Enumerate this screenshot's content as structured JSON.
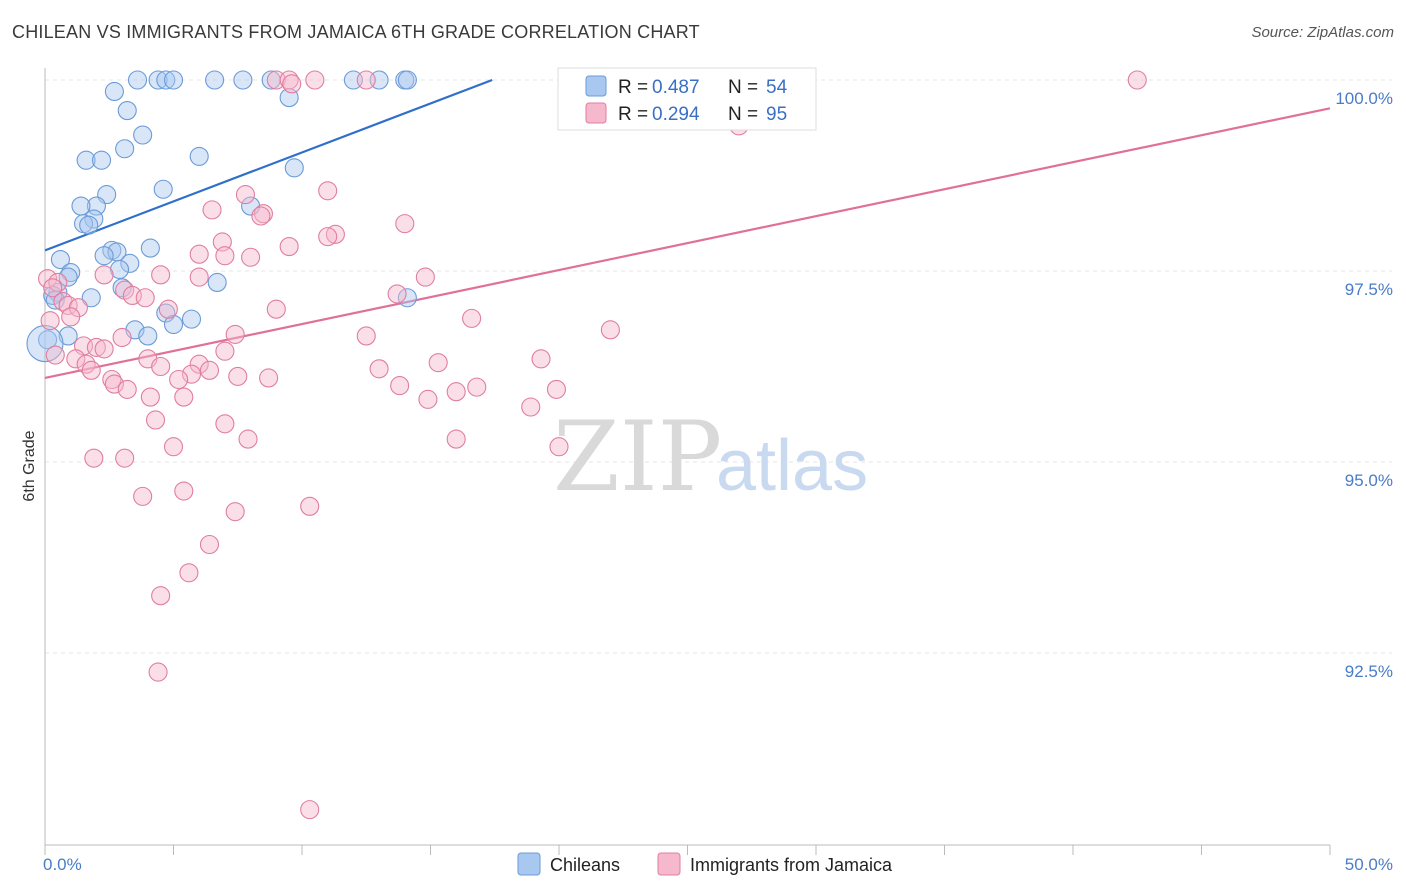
{
  "title": "CHILEAN VS IMMIGRANTS FROM JAMAICA 6TH GRADE CORRELATION CHART",
  "source": "Source: ZipAtlas.com",
  "watermark": {
    "part1": "ZIP",
    "part2": "atlas"
  },
  "legend": {
    "rows": [
      {
        "r_label": "R = ",
        "r_value": "0.487",
        "n_label": "N = ",
        "n_value": "54",
        "color": "#a8c8ef",
        "stroke": "#6b9bd8"
      },
      {
        "r_label": "R = ",
        "r_value": "0.294",
        "n_label": "N = ",
        "n_value": "95",
        "color": "#f6b8cc",
        "stroke": "#e07ea0"
      }
    ]
  },
  "bottom_legend": [
    "Chileans",
    "Immigrants from Jamaica"
  ],
  "chart_data": {
    "type": "scatter",
    "title": "CHILEAN VS IMMIGRANTS FROM JAMAICA 6TH GRADE CORRELATION CHART",
    "xlabel": "",
    "ylabel": "6th Grade",
    "xlim": [
      0,
      50
    ],
    "ylim": [
      90.5,
      100.25
    ],
    "x_tick_labels": [
      "0.0%",
      "50.0%"
    ],
    "y_ticks": [
      92.5,
      95.0,
      97.5,
      100.0
    ],
    "y_tick_labels": [
      "92.5%",
      "95.0%",
      "97.5%",
      "100.0%"
    ],
    "grid": true,
    "legend_position": "top-center",
    "series": [
      {
        "name": "Chileans",
        "color": "#6b9bd8",
        "fill": "#a8c8ef",
        "trend": {
          "x": [
            0,
            17.4
          ],
          "y": [
            97.77,
            100.0
          ]
        },
        "points": [
          [
            3.6,
            100.0
          ],
          [
            4.4,
            100.0
          ],
          [
            4.7,
            100.0
          ],
          [
            5.0,
            100.0
          ],
          [
            6.6,
            100.0
          ],
          [
            7.7,
            100.0
          ],
          [
            8.8,
            100.0
          ],
          [
            12.0,
            100.0
          ],
          [
            13.0,
            100.0
          ],
          [
            14.0,
            100.0
          ],
          [
            14.1,
            100.0
          ],
          [
            25.6,
            100.0
          ],
          [
            2.7,
            99.85
          ],
          [
            9.5,
            99.77
          ],
          [
            3.2,
            99.6
          ],
          [
            3.8,
            99.28
          ],
          [
            3.1,
            99.1
          ],
          [
            6.0,
            99.0
          ],
          [
            1.6,
            98.95
          ],
          [
            2.2,
            98.95
          ],
          [
            9.7,
            98.85
          ],
          [
            4.6,
            98.57
          ],
          [
            2.4,
            98.5
          ],
          [
            2.0,
            98.35
          ],
          [
            1.4,
            98.35
          ],
          [
            8.0,
            98.35
          ],
          [
            1.9,
            98.18
          ],
          [
            1.5,
            98.12
          ],
          [
            1.7,
            98.1
          ],
          [
            4.1,
            97.8
          ],
          [
            2.6,
            97.77
          ],
          [
            2.8,
            97.75
          ],
          [
            2.3,
            97.7
          ],
          [
            0.6,
            97.65
          ],
          [
            3.3,
            97.6
          ],
          [
            2.9,
            97.52
          ],
          [
            1.0,
            97.48
          ],
          [
            0.9,
            97.42
          ],
          [
            6.7,
            97.35
          ],
          [
            3.0,
            97.28
          ],
          [
            0.5,
            97.22
          ],
          [
            0.3,
            97.18
          ],
          [
            1.8,
            97.15
          ],
          [
            14.1,
            97.15
          ],
          [
            0.4,
            97.12
          ],
          [
            4.7,
            96.95
          ],
          [
            5.7,
            96.87
          ],
          [
            5.0,
            96.8
          ],
          [
            3.5,
            96.73
          ],
          [
            4.0,
            96.65
          ],
          [
            0.9,
            96.65
          ],
          [
            0.1,
            96.6
          ],
          [
            0.0,
            96.55
          ]
        ]
      },
      {
        "name": "Immigrants from Jamaica",
        "color": "#e07ea0",
        "fill": "#f6b8cc",
        "trend": {
          "x": [
            0,
            50
          ],
          "y": [
            96.1,
            99.63
          ]
        },
        "points": [
          [
            9.0,
            100.0
          ],
          [
            9.5,
            100.0
          ],
          [
            10.5,
            100.0
          ],
          [
            12.5,
            100.0
          ],
          [
            20.5,
            100.0
          ],
          [
            25.8,
            100.0
          ],
          [
            42.5,
            100.0
          ],
          [
            9.6,
            99.95
          ],
          [
            27.0,
            99.4
          ],
          [
            11.0,
            98.55
          ],
          [
            7.8,
            98.5
          ],
          [
            6.5,
            98.3
          ],
          [
            8.5,
            98.25
          ],
          [
            8.4,
            98.22
          ],
          [
            14.0,
            98.12
          ],
          [
            11.3,
            97.98
          ],
          [
            11.0,
            97.95
          ],
          [
            6.9,
            97.88
          ],
          [
            9.5,
            97.82
          ],
          [
            6.0,
            97.72
          ],
          [
            7.0,
            97.7
          ],
          [
            8.0,
            97.68
          ],
          [
            4.5,
            97.45
          ],
          [
            2.3,
            97.45
          ],
          [
            6.0,
            97.42
          ],
          [
            14.8,
            97.42
          ],
          [
            0.1,
            97.4
          ],
          [
            0.5,
            97.35
          ],
          [
            0.3,
            97.28
          ],
          [
            3.1,
            97.25
          ],
          [
            13.7,
            97.2
          ],
          [
            3.4,
            97.18
          ],
          [
            3.9,
            97.15
          ],
          [
            0.7,
            97.1
          ],
          [
            0.9,
            97.05
          ],
          [
            1.3,
            97.02
          ],
          [
            9.0,
            97.0
          ],
          [
            4.8,
            97.0
          ],
          [
            1.0,
            96.9
          ],
          [
            16.6,
            96.88
          ],
          [
            0.2,
            96.85
          ],
          [
            22.0,
            96.73
          ],
          [
            7.4,
            96.67
          ],
          [
            12.5,
            96.65
          ],
          [
            3.0,
            96.63
          ],
          [
            1.5,
            96.52
          ],
          [
            2.0,
            96.5
          ],
          [
            2.3,
            96.48
          ],
          [
            7.0,
            96.45
          ],
          [
            0.4,
            96.4
          ],
          [
            1.2,
            96.35
          ],
          [
            4.0,
            96.35
          ],
          [
            19.3,
            96.35
          ],
          [
            15.3,
            96.3
          ],
          [
            1.6,
            96.28
          ],
          [
            6.0,
            96.28
          ],
          [
            4.5,
            96.25
          ],
          [
            13.0,
            96.22
          ],
          [
            6.4,
            96.2
          ],
          [
            1.8,
            96.2
          ],
          [
            5.7,
            96.15
          ],
          [
            7.5,
            96.12
          ],
          [
            8.7,
            96.1
          ],
          [
            5.2,
            96.08
          ],
          [
            2.6,
            96.08
          ],
          [
            2.7,
            96.02
          ],
          [
            13.8,
            96.0
          ],
          [
            16.8,
            95.98
          ],
          [
            3.2,
            95.95
          ],
          [
            19.9,
            95.95
          ],
          [
            16.0,
            95.92
          ],
          [
            4.1,
            95.85
          ],
          [
            5.4,
            95.85
          ],
          [
            14.9,
            95.82
          ],
          [
            18.9,
            95.72
          ],
          [
            4.3,
            95.55
          ],
          [
            7.0,
            95.5
          ],
          [
            16.0,
            95.3
          ],
          [
            7.9,
            95.3
          ],
          [
            20.0,
            95.2
          ],
          [
            5.0,
            95.2
          ],
          [
            1.9,
            95.05
          ],
          [
            3.1,
            95.05
          ],
          [
            5.4,
            94.62
          ],
          [
            3.8,
            94.55
          ],
          [
            10.3,
            94.42
          ],
          [
            7.4,
            94.35
          ],
          [
            6.4,
            93.92
          ],
          [
            5.6,
            93.55
          ],
          [
            4.5,
            93.25
          ],
          [
            4.4,
            92.25
          ],
          [
            10.3,
            90.45
          ]
        ]
      }
    ]
  }
}
